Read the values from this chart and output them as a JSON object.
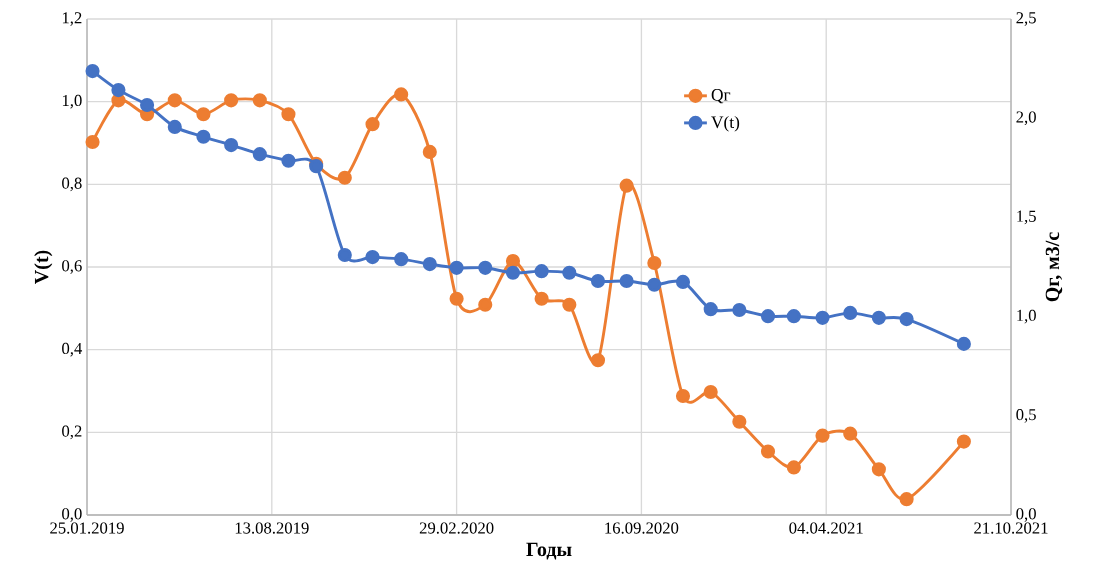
{
  "chart_data": {
    "type": "line",
    "xlabel": "Годы",
    "ylabel": "V(t)",
    "y2label": "Qг, м3/с",
    "x": [
      "2019-01-31",
      "2019-02-28",
      "2019-03-31",
      "2019-04-30",
      "2019-05-31",
      "2019-06-30",
      "2019-07-31",
      "2019-08-31",
      "2019-09-30",
      "2019-10-31",
      "2019-11-30",
      "2019-12-31",
      "2020-01-31",
      "2020-02-29",
      "2020-03-31",
      "2020-04-30",
      "2020-05-31",
      "2020-06-30",
      "2020-07-31",
      "2020-08-31",
      "2020-09-30",
      "2020-10-31",
      "2020-11-30",
      "2020-12-31",
      "2021-01-31",
      "2021-02-28",
      "2021-03-31",
      "2021-04-30",
      "2021-05-31",
      "2021-06-30",
      "2021-08-31"
    ],
    "series": [
      {
        "name": "Qг",
        "color": "#ed7d31",
        "axis": "y2",
        "values": [
          1.88,
          2.09,
          2.02,
          2.09,
          2.02,
          2.09,
          2.09,
          2.02,
          1.77,
          1.7,
          1.97,
          2.12,
          1.83,
          1.09,
          1.06,
          1.28,
          1.09,
          1.06,
          0.78,
          1.66,
          1.27,
          0.6,
          0.62,
          0.47,
          0.32,
          0.24,
          0.4,
          0.41,
          0.23,
          0.08,
          0.37
        ]
      },
      {
        "name": "V(t)",
        "color": "#4472c4",
        "values": [
          1.074,
          1.028,
          0.992,
          0.939,
          0.915,
          0.895,
          0.873,
          0.857,
          0.844,
          0.629,
          0.624,
          0.619,
          0.607,
          0.598,
          0.598,
          0.586,
          0.59,
          0.586,
          0.566,
          0.566,
          0.557,
          0.564,
          0.498,
          0.496,
          0.481,
          0.481,
          0.477,
          0.489,
          0.477,
          0.474,
          0.414
        ]
      }
    ],
    "xlim": [
      "2019-01-25",
      "2021-10-21"
    ],
    "xticks": [
      {
        "value": "2019-01-25",
        "label": "25.01.2019"
      },
      {
        "value": "2019-08-13",
        "label": "13.08.2019"
      },
      {
        "value": "2020-02-29",
        "label": "29.02.2020"
      },
      {
        "value": "2020-09-16",
        "label": "16.09.2020"
      },
      {
        "value": "2021-04-04",
        "label": "04.04.2021"
      },
      {
        "value": "2021-10-21",
        "label": "21.10.2021"
      }
    ],
    "ylim": [
      0,
      1.2
    ],
    "yticks": [
      {
        "value": 0,
        "label": "0,0"
      },
      {
        "value": 0.2,
        "label": "0,2"
      },
      {
        "value": 0.4,
        "label": "0,4"
      },
      {
        "value": 0.6,
        "label": "0,6"
      },
      {
        "value": 0.8,
        "label": "0,8"
      },
      {
        "value": 1.0,
        "label": "1,0"
      },
      {
        "value": 1.2,
        "label": "1,2"
      }
    ],
    "y2lim": [
      0,
      2.5
    ],
    "y2ticks": [
      {
        "value": 0,
        "label": "0,0"
      },
      {
        "value": 0.5,
        "label": "0,5"
      },
      {
        "value": 1.0,
        "label": "1,0"
      },
      {
        "value": 1.5,
        "label": "1,5"
      },
      {
        "value": 2.0,
        "label": "2,0"
      },
      {
        "value": 2.5,
        "label": "2,5"
      }
    ],
    "grid": true,
    "legend": "top right",
    "marker": "circle",
    "line_style": "solid"
  }
}
